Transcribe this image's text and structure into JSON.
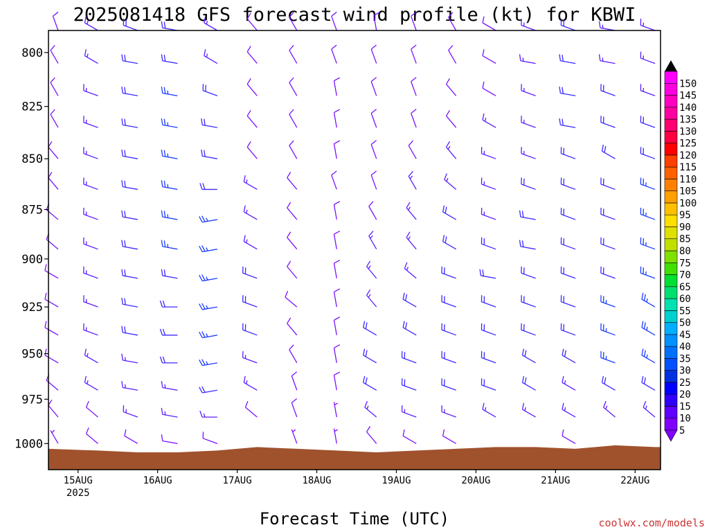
{
  "chart_data": {
    "type": "wind-barb-profile",
    "title": "2025081418 GFS forecast wind profile (kt) for KBWI",
    "xlabel": "Forecast Time (UTC)",
    "ylabel": "",
    "credit": "coolwx.com/models",
    "y_axis": {
      "scale": "log-pressure",
      "inverted": true,
      "ylim_hpa": [
        790,
        1015
      ],
      "ticks": [
        "800",
        "825",
        "850",
        "875",
        "900",
        "925",
        "950",
        "975",
        "1000"
      ]
    },
    "x_axis": {
      "start": "2025-08-14T18Z",
      "end": "2025-08-22T06Z",
      "ticks": [
        {
          "label": "15AUG",
          "sub": "2025"
        },
        {
          "label": "16AUG",
          "sub": ""
        },
        {
          "label": "17AUG",
          "sub": ""
        },
        {
          "label": "18AUG",
          "sub": ""
        },
        {
          "label": "19AUG",
          "sub": ""
        },
        {
          "label": "20AUG",
          "sub": ""
        },
        {
          "label": "21AUG",
          "sub": ""
        },
        {
          "label": "22AUG",
          "sub": ""
        }
      ]
    },
    "barb_levels_hpa": [
      790,
      805,
      820,
      835,
      850,
      865,
      880,
      895,
      910,
      925,
      940,
      955,
      970,
      985,
      1000
    ],
    "barb_times_hours": [
      0,
      12,
      24,
      36,
      48,
      60,
      72,
      84,
      96,
      108,
      120,
      132,
      144,
      156,
      168,
      180
    ],
    "winds": {
      "description": "direction(deg from)/speed(kt) per level (rows) and time (cols)",
      "dir": [
        [
          340,
          300,
          290,
          280,
          300,
          320,
          330,
          340,
          350,
          340,
          330,
          300,
          290,
          290,
          280,
          290
        ],
        [
          330,
          300,
          280,
          280,
          300,
          320,
          330,
          340,
          340,
          340,
          330,
          300,
          280,
          280,
          280,
          290
        ],
        [
          330,
          290,
          280,
          280,
          290,
          320,
          330,
          350,
          340,
          340,
          320,
          300,
          290,
          280,
          290,
          290
        ],
        [
          330,
          290,
          280,
          280,
          280,
          320,
          330,
          350,
          340,
          340,
          320,
          300,
          290,
          280,
          290,
          290
        ],
        [
          320,
          290,
          280,
          280,
          280,
          320,
          330,
          350,
          340,
          330,
          320,
          290,
          290,
          290,
          300,
          290
        ],
        [
          320,
          290,
          280,
          280,
          270,
          300,
          320,
          340,
          340,
          330,
          310,
          290,
          290,
          290,
          290,
          290
        ],
        [
          310,
          290,
          280,
          280,
          260,
          300,
          320,
          350,
          330,
          320,
          300,
          290,
          280,
          290,
          290,
          290
        ],
        [
          310,
          290,
          280,
          280,
          260,
          300,
          320,
          350,
          330,
          320,
          300,
          290,
          280,
          290,
          290,
          290
        ],
        [
          300,
          290,
          280,
          280,
          260,
          290,
          320,
          350,
          320,
          310,
          290,
          280,
          290,
          290,
          290,
          290
        ],
        [
          300,
          290,
          280,
          270,
          260,
          290,
          310,
          350,
          320,
          300,
          290,
          290,
          290,
          290,
          290,
          300
        ],
        [
          300,
          290,
          280,
          270,
          260,
          290,
          320,
          350,
          300,
          300,
          290,
          290,
          290,
          290,
          290,
          300
        ],
        [
          300,
          300,
          280,
          270,
          260,
          290,
          330,
          350,
          300,
          290,
          290,
          290,
          300,
          300,
          290,
          300
        ],
        [
          310,
          300,
          280,
          280,
          260,
          300,
          340,
          350,
          300,
          290,
          290,
          290,
          300,
          300,
          300,
          300
        ],
        [
          320,
          310,
          290,
          280,
          270,
          310,
          340,
          350,
          310,
          290,
          290,
          300,
          300,
          300,
          310,
          310
        ],
        [
          330,
          310,
          300,
          280,
          290,
          320,
          340,
          350,
          320,
          300,
          300,
          300,
          300,
          300,
          310,
          310
        ]
      ],
      "spd": [
        [
          10,
          15,
          20,
          20,
          15,
          10,
          10,
          10,
          10,
          10,
          10,
          10,
          15,
          20,
          15,
          15
        ],
        [
          10,
          15,
          20,
          20,
          15,
          10,
          10,
          10,
          10,
          10,
          10,
          10,
          15,
          20,
          15,
          15
        ],
        [
          10,
          15,
          20,
          25,
          20,
          10,
          10,
          10,
          10,
          10,
          10,
          10,
          15,
          20,
          20,
          15
        ],
        [
          10,
          15,
          20,
          25,
          20,
          10,
          10,
          10,
          10,
          10,
          10,
          15,
          15,
          20,
          20,
          20
        ],
        [
          10,
          15,
          20,
          25,
          20,
          10,
          10,
          10,
          10,
          10,
          15,
          15,
          15,
          20,
          20,
          20
        ],
        [
          10,
          15,
          20,
          25,
          20,
          15,
          10,
          10,
          10,
          15,
          15,
          15,
          20,
          20,
          20,
          25
        ],
        [
          10,
          15,
          20,
          25,
          25,
          15,
          10,
          10,
          10,
          15,
          20,
          15,
          20,
          20,
          20,
          25
        ],
        [
          10,
          15,
          20,
          25,
          25,
          15,
          10,
          10,
          15,
          15,
          20,
          20,
          20,
          20,
          20,
          25
        ],
        [
          10,
          15,
          20,
          20,
          25,
          20,
          10,
          10,
          15,
          15,
          20,
          20,
          20,
          20,
          20,
          25
        ],
        [
          10,
          15,
          20,
          20,
          25,
          20,
          10,
          10,
          15,
          20,
          20,
          20,
          20,
          20,
          25,
          25
        ],
        [
          10,
          15,
          20,
          20,
          25,
          20,
          10,
          10,
          20,
          20,
          20,
          20,
          20,
          20,
          25,
          25
        ],
        [
          10,
          15,
          15,
          20,
          25,
          15,
          10,
          10,
          20,
          20,
          20,
          20,
          20,
          20,
          25,
          25
        ],
        [
          10,
          15,
          15,
          15,
          20,
          15,
          10,
          10,
          20,
          20,
          20,
          20,
          20,
          15,
          20,
          20
        ],
        [
          10,
          10,
          15,
          15,
          15,
          10,
          10,
          5,
          15,
          15,
          15,
          15,
          15,
          15,
          15,
          15
        ],
        [
          5,
          10,
          10,
          10,
          10,
          10,
          5,
          5,
          10,
          10,
          10,
          10,
          10,
          10,
          10,
          10
        ]
      ]
    },
    "surface_pressure_hpa": [
      1003,
      1004,
      1005,
      1005,
      1004,
      1002,
      1003,
      1004,
      1005,
      1004,
      1003,
      1002,
      1002,
      1003,
      1001,
      1002
    ],
    "colorbar": {
      "labels": [
        "5",
        "10",
        "15",
        "20",
        "25",
        "30",
        "35",
        "40",
        "45",
        "50",
        "55",
        "60",
        "65",
        "70",
        "75",
        "80",
        "85",
        "90",
        "95",
        "100",
        "105",
        "110",
        "115",
        "120",
        "125",
        "130",
        "135",
        "140",
        "145",
        "150"
      ],
      "colors": [
        "#8000ff",
        "#6000ff",
        "#3000ff",
        "#0000ff",
        "#0030e0",
        "#0050ff",
        "#0070ff",
        "#0090ff",
        "#00b0ff",
        "#00d0d0",
        "#00e0b0",
        "#00e070",
        "#00e030",
        "#40e000",
        "#80e000",
        "#c0e000",
        "#e0e000",
        "#ffe000",
        "#ffc000",
        "#ffa000",
        "#ff8000",
        "#ff6000",
        "#ff4000",
        "#ff0000",
        "#ff0040",
        "#ff0070",
        "#ff00a0",
        "#ff00c0",
        "#ff00e0",
        "#ff00ff"
      ]
    }
  }
}
